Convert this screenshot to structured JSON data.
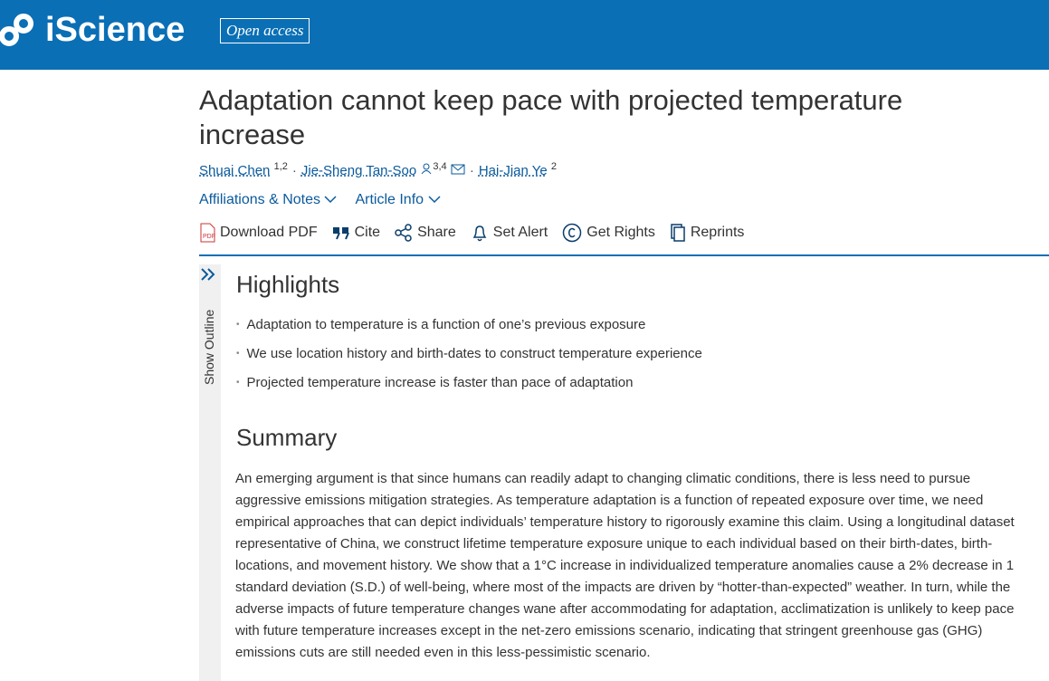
{
  "header": {
    "logo": "iScience",
    "badge": "Open access"
  },
  "article": {
    "title": "Adaptation cannot keep pace with projected temperature increase",
    "separator": "·",
    "authors": [
      {
        "name": "Shuai Chen",
        "sup": "1,2"
      },
      {
        "name": "Jie-Sheng Tan-Soo",
        "sup": "3,4"
      },
      {
        "name": "Hai-Jian Ye",
        "sup": "2"
      }
    ],
    "links": [
      "Affiliations & Notes",
      "Article Info"
    ],
    "toolbar": [
      "Download PDF",
      "Cite",
      "Share",
      "Set Alert",
      "Get Rights",
      "Reprints"
    ],
    "outline": "Show Outline",
    "highlights": {
      "heading": "Highlights",
      "items": [
        "Adaptation to temperature is a function of one’s previous exposure",
        "We use location history and birth-dates to construct temperature experience",
        "Projected temperature increase is faster than pace of adaptation"
      ]
    },
    "summary": {
      "heading": "Summary",
      "text": "An emerging argument is that since humans can readily adapt to changing climatic conditions, there is less need to pursue aggressive emissions mitigation strategies. As temperature adaptation is a function of repeated exposure over time, we need empirical approaches that can depict individuals’ temperature history to rigorously examine this claim. Using a longitudinal dataset representative of China, we construct lifetime temperature exposure unique to each individual based on their birth-dates, birth-locations, and movement history. We show that a 1°C increase in individualized temperature anomalies cause a 2% decrease in 1 standard deviation (S.D.) of well-being, where most of the impacts are driven by “hotter-than-expected” weather. In turn, while the adverse impacts of future temperature changes wane after accommodating for adaptation, acclimatization is unlikely to keep pace with future temperature increases except in the net-zero emissions scenario, indicating that stringent greenhouse gas (GHG) emissions cuts are still needed even in this less-pessimistic scenario."
    }
  }
}
